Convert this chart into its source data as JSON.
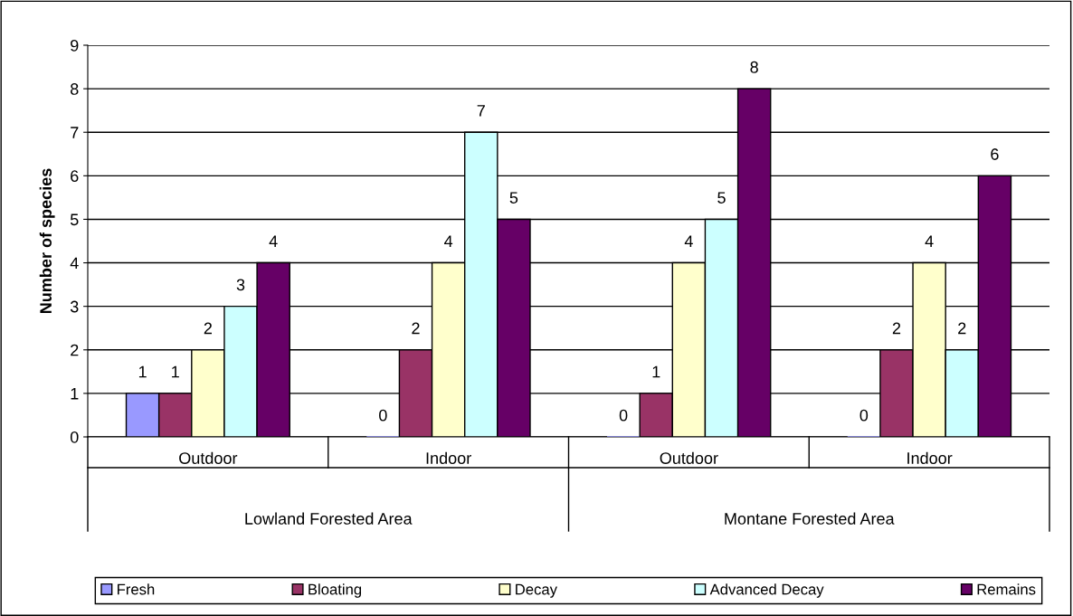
{
  "chart_data": {
    "type": "bar",
    "ylabel": "Number of species",
    "categories": [
      "Outdoor",
      "Indoor",
      "Outdoor",
      "Indoor"
    ],
    "annotations": [
      "Lowland Forested Area",
      "Montane Forested Area"
    ],
    "series": [
      {
        "name": "Fresh",
        "color": "#9999ff",
        "values": [
          1,
          0,
          0,
          0
        ]
      },
      {
        "name": "Bloating",
        "color": "#993366",
        "values": [
          1,
          2,
          1,
          2
        ]
      },
      {
        "name": "Decay",
        "color": "#ffffcc",
        "values": [
          2,
          4,
          4,
          4
        ]
      },
      {
        "name": "Advanced Decay",
        "color": "#ccffff",
        "values": [
          3,
          7,
          5,
          2
        ]
      },
      {
        "name": "Remains",
        "color": "#660066",
        "values": [
          4,
          5,
          8,
          6
        ]
      }
    ],
    "ylim": [
      0,
      9
    ],
    "yticks": [
      0,
      1,
      2,
      3,
      4,
      5,
      6,
      7,
      8,
      9
    ],
    "grid": "y",
    "legend": "bottom",
    "data_labels": true
  }
}
